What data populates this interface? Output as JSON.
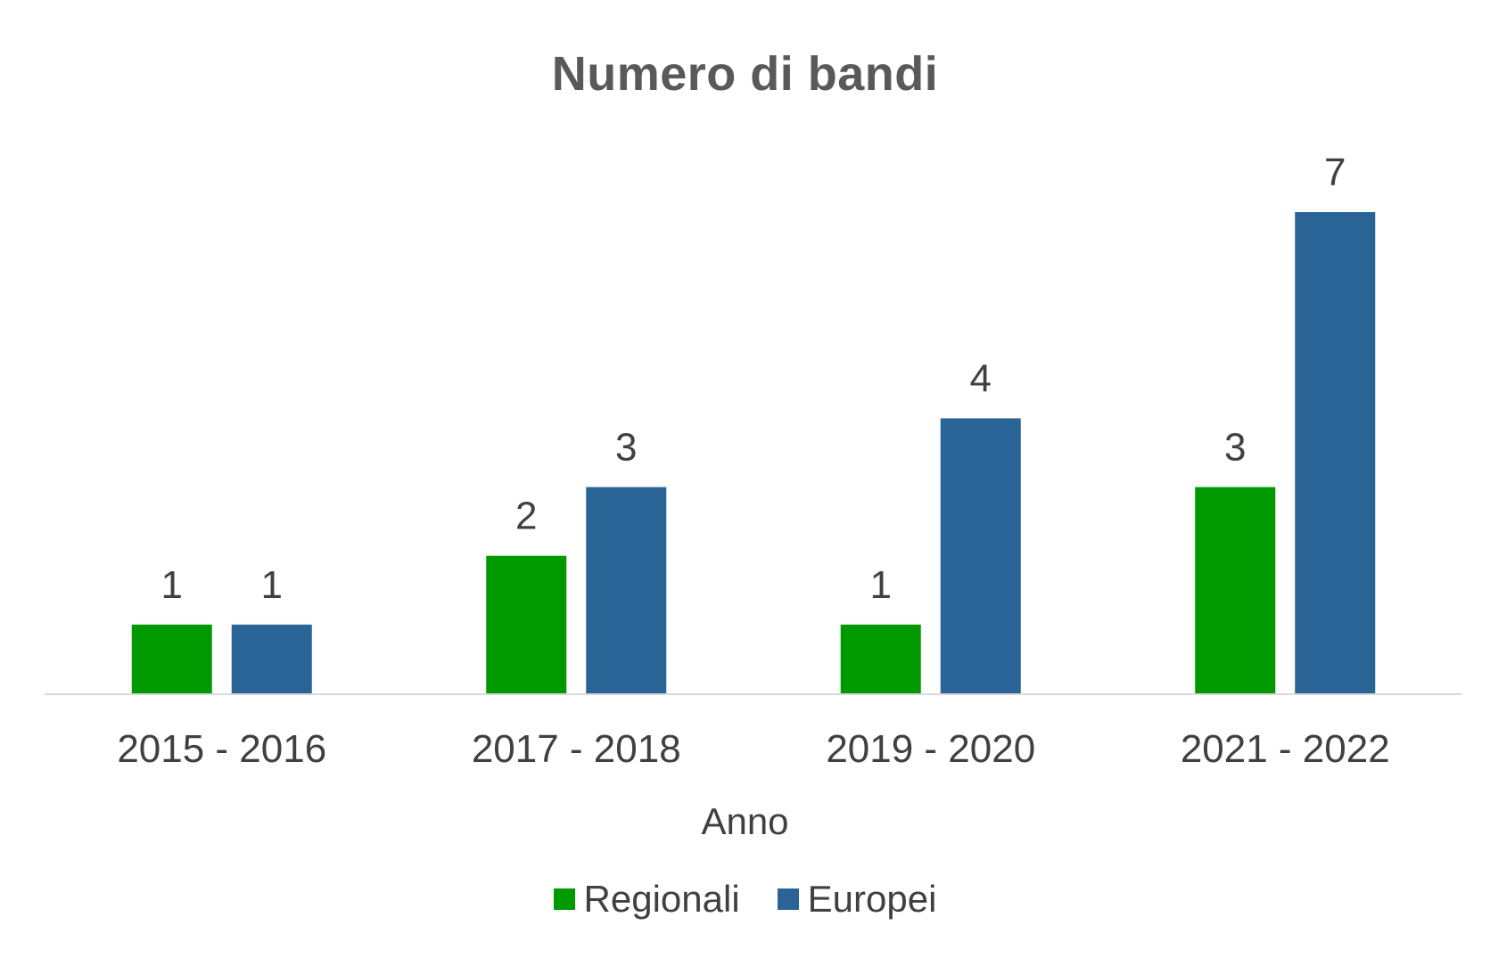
{
  "chart_data": {
    "type": "bar",
    "title": "Numero di bandi",
    "xlabel": "Anno",
    "ylabel": "",
    "categories": [
      "2015 - 2016",
      "2017 - 2018",
      "2019 - 2020",
      "2021 - 2022"
    ],
    "series": [
      {
        "name": "Regionali",
        "values": [
          1,
          2,
          1,
          3
        ],
        "color": "#009900"
      },
      {
        "name": "Europei",
        "values": [
          1,
          3,
          4,
          7
        ],
        "color": "#2A6496"
      }
    ],
    "ylim": [
      0,
      8
    ],
    "grid": false,
    "legend": "bottom",
    "data_labels": true
  }
}
